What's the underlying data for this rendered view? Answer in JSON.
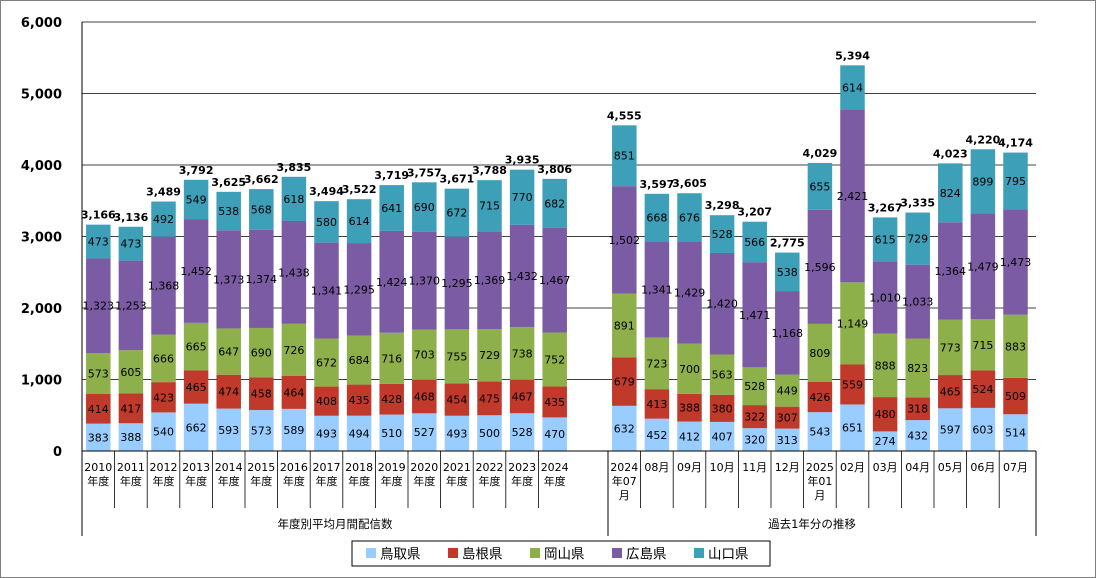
{
  "chart_data": {
    "type": "bar",
    "stacked": true,
    "ylim": [
      0,
      6000
    ],
    "yticks": [
      "0",
      "1,000",
      "2,000",
      "3,000",
      "4,000",
      "5,000",
      "6,000"
    ],
    "grid": "horizontal",
    "legend_position": "bottom",
    "groups": [
      {
        "label": "年度別平均月間配信数",
        "categories": [
          [
            "2010",
            "年度"
          ],
          [
            "2011",
            "年度"
          ],
          [
            "2012",
            "年度"
          ],
          [
            "2013",
            "年度"
          ],
          [
            "2014",
            "年度"
          ],
          [
            "2015",
            "年度"
          ],
          [
            "2016",
            "年度"
          ],
          [
            "2017",
            "年度"
          ],
          [
            "2018",
            "年度"
          ],
          [
            "2019",
            "年度"
          ],
          [
            "2020",
            "年度"
          ],
          [
            "2021",
            "年度"
          ],
          [
            "2022",
            "年度"
          ],
          [
            "2023",
            "年度"
          ],
          [
            "2024",
            "年度"
          ]
        ],
        "series_values": [
          [
            383,
            388,
            540,
            662,
            593,
            573,
            589,
            493,
            494,
            510,
            527,
            493,
            500,
            528,
            470
          ],
          [
            414,
            417,
            423,
            465,
            474,
            458,
            464,
            408,
            435,
            428,
            468,
            454,
            475,
            467,
            435
          ],
          [
            573,
            605,
            666,
            665,
            647,
            690,
            726,
            672,
            684,
            716,
            703,
            755,
            729,
            738,
            752
          ],
          [
            1323,
            1253,
            1368,
            1452,
            1373,
            1374,
            1438,
            1341,
            1295,
            1424,
            1370,
            1295,
            1369,
            1432,
            1467
          ],
          [
            473,
            473,
            492,
            549,
            538,
            568,
            618,
            580,
            614,
            641,
            690,
            672,
            715,
            770,
            682
          ]
        ],
        "totals": [
          "3,166",
          "3,136",
          "3,489",
          "3,792",
          "3,625",
          "3,662",
          "3,835",
          "3,494",
          "3,522",
          "3,719",
          "3,757",
          "3,671",
          "3,788",
          "3,935",
          "3,806"
        ]
      },
      {
        "label": "過去1年分の推移",
        "categories": [
          [
            "2024",
            "年07",
            "月"
          ],
          [
            "08月"
          ],
          [
            "09月"
          ],
          [
            "10月"
          ],
          [
            "11月"
          ],
          [
            "12月"
          ],
          [
            "2025",
            "年01",
            "月"
          ],
          [
            "02月"
          ],
          [
            "03月"
          ],
          [
            "04月"
          ],
          [
            "05月"
          ],
          [
            "06月"
          ],
          [
            "07月"
          ]
        ],
        "series_values": [
          [
            632,
            452,
            412,
            407,
            320,
            313,
            543,
            651,
            274,
            432,
            597,
            603,
            514
          ],
          [
            679,
            413,
            388,
            380,
            322,
            307,
            426,
            559,
            480,
            318,
            465,
            524,
            509
          ],
          [
            891,
            723,
            700,
            563,
            528,
            449,
            809,
            1149,
            888,
            823,
            773,
            715,
            883
          ],
          [
            1502,
            1341,
            1429,
            1420,
            1471,
            1168,
            1596,
            2421,
            1010,
            1033,
            1364,
            1479,
            1473
          ],
          [
            851,
            668,
            676,
            528,
            566,
            538,
            655,
            614,
            615,
            729,
            824,
            899,
            795
          ]
        ],
        "totals": [
          "4,555",
          "3,597",
          "3,605",
          "3,298",
          "3,207",
          "2,775",
          "4,029",
          "5,394",
          "3,267",
          "3,335",
          "4,023",
          "4,220",
          "4,174"
        ]
      }
    ],
    "series": [
      {
        "name": "鳥取県",
        "color": "#99ccff"
      },
      {
        "name": "島根県",
        "color": "#c0392b"
      },
      {
        "name": "岡山県",
        "color": "#8db04a"
      },
      {
        "name": "広島県",
        "color": "#7b5ba3"
      },
      {
        "name": "山口県",
        "color": "#3d9fb8"
      }
    ]
  }
}
